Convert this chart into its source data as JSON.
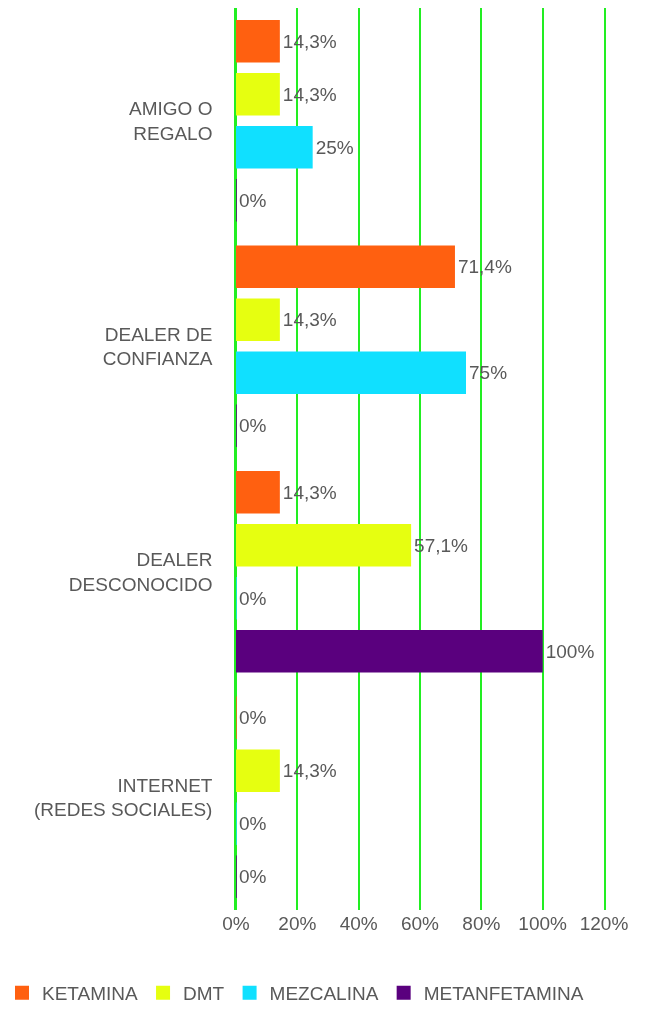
{
  "chart_data": {
    "type": "bar",
    "orientation": "horizontal",
    "categories": [
      "AMIGO O\nREGALO",
      "DEALER DE\nCONFIANZA",
      "DEALER\nDESCONOCIDO",
      "INTERNET\n(REDES SOCIALES)"
    ],
    "series": [
      {
        "name": "KETAMINA",
        "color": "#ff6010",
        "values": [
          14.3,
          71.4,
          14.3,
          0
        ],
        "value_labels": [
          "14,3%",
          "71,4%",
          "14,3%",
          "0%"
        ]
      },
      {
        "name": "DMT",
        "color": "#e6ff10",
        "values": [
          14.3,
          14.3,
          57.1,
          14.3
        ],
        "value_labels": [
          "14,3%",
          "14,3%",
          "57,1%",
          "14,3%"
        ]
      },
      {
        "name": "MEZCALINA",
        "color": "#10e0ff",
        "values": [
          25,
          75,
          0,
          0
        ],
        "value_labels": [
          "25%",
          "75%",
          "0%",
          "0%"
        ]
      },
      {
        "name": "METANFETAMINA",
        "color": "#5a007e",
        "values": [
          0,
          0,
          100,
          0
        ],
        "value_labels": [
          "0%",
          "0%",
          "100%",
          "0%"
        ]
      }
    ],
    "xlim": [
      0,
      120
    ],
    "xticks": [
      {
        "value": 0,
        "label": "0%"
      },
      {
        "value": 20,
        "label": "20%"
      },
      {
        "value": 40,
        "label": "40%"
      },
      {
        "value": 60,
        "label": "60%"
      },
      {
        "value": 80,
        "label": "80%"
      },
      {
        "value": 100,
        "label": "100%"
      },
      {
        "value": 120,
        "label": "120%"
      }
    ],
    "grid": "x",
    "legend": "bottom"
  }
}
